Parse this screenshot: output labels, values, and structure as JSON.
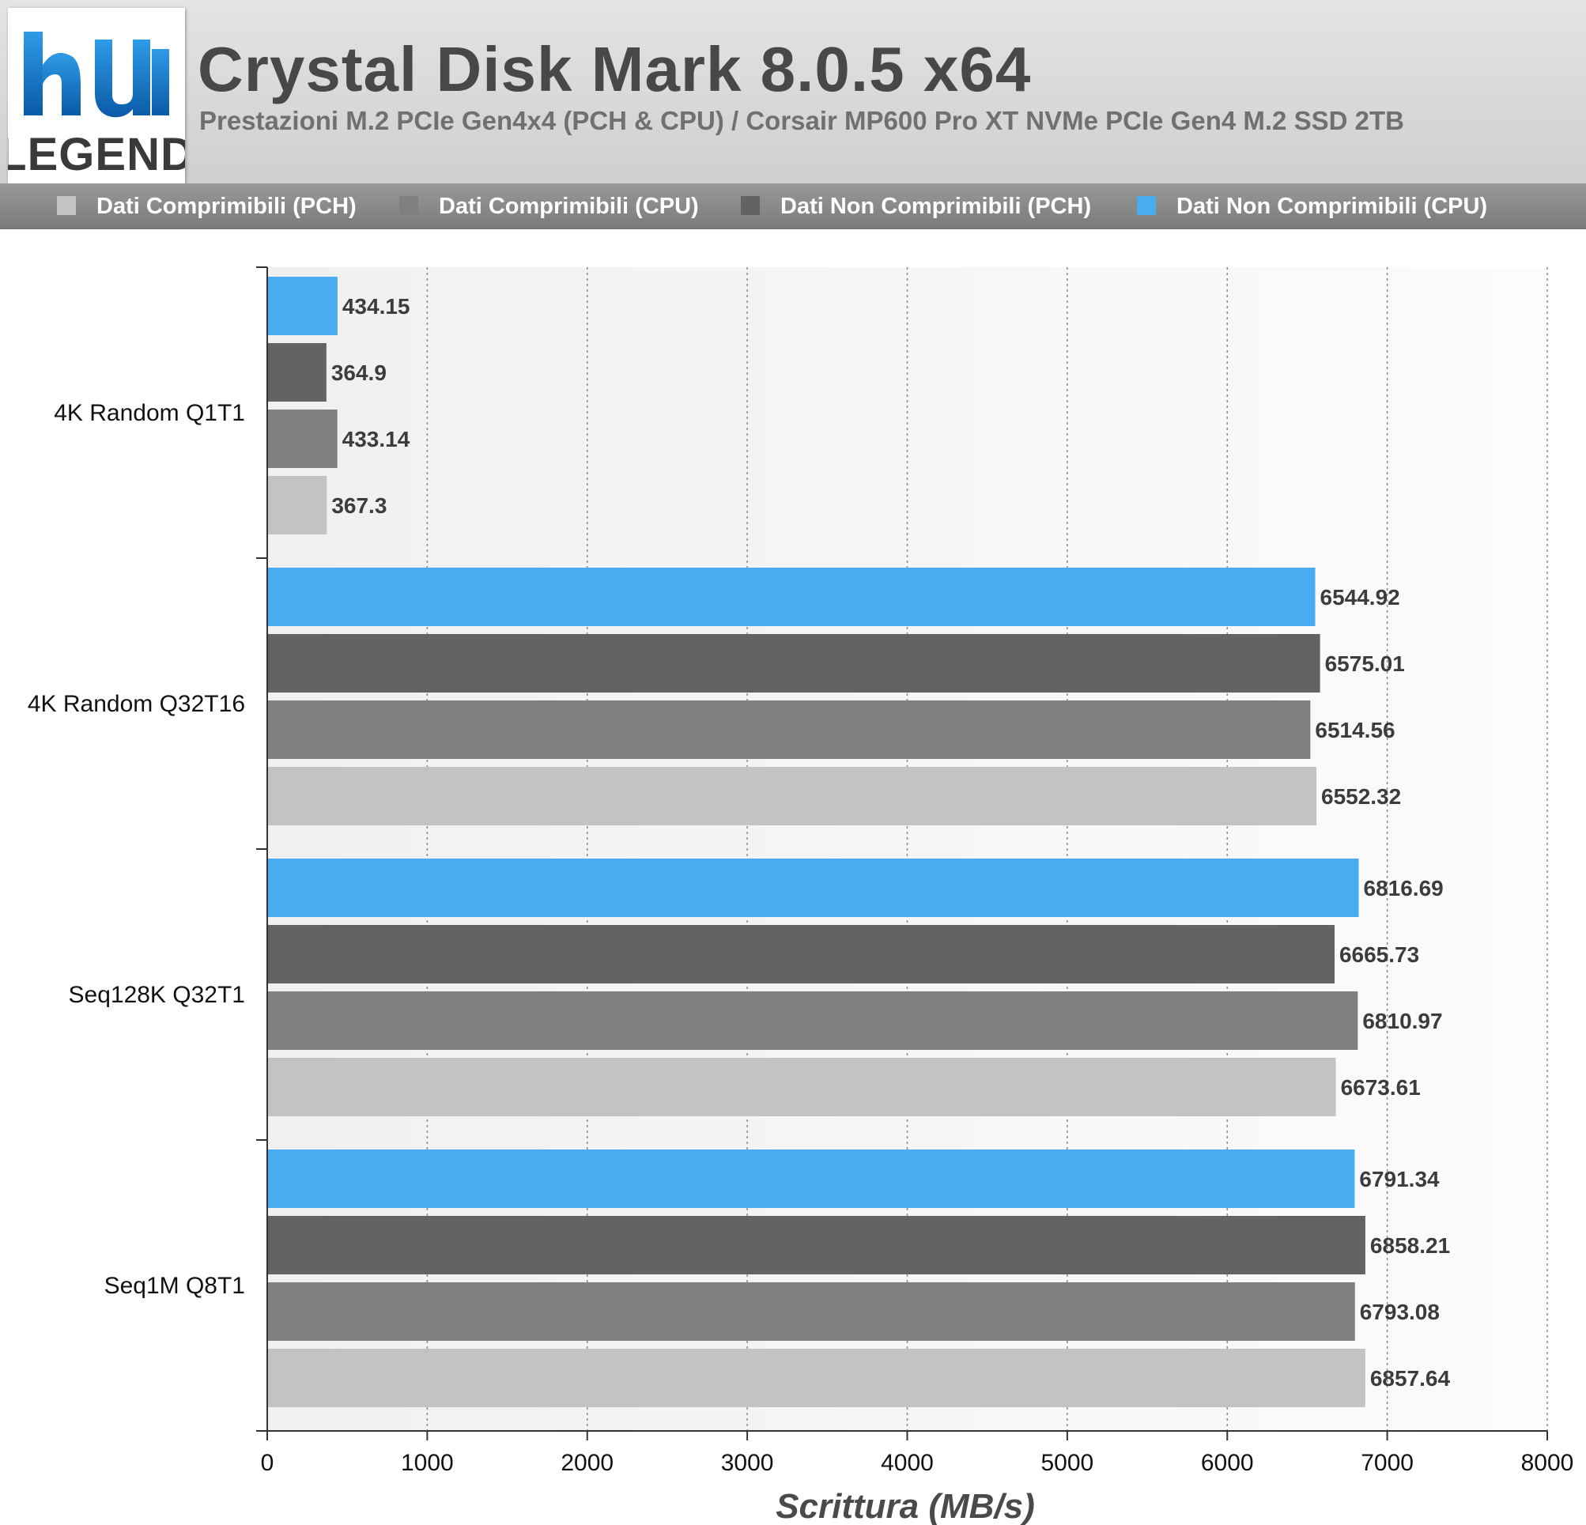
{
  "header": {
    "title": "Crystal Disk Mark 8.0.5 x64",
    "subtitle": "Prestazioni M.2 PCIe Gen4x4 (PCH & CPU) / Corsair MP600 Pro XT NVMe PCIe Gen4 M.2 SSD 2TB",
    "logo_text": "LEGEND"
  },
  "chart_data": {
    "type": "bar",
    "orientation": "horizontal",
    "title": "Crystal Disk Mark 8.0.5 x64",
    "subtitle": "Prestazioni M.2 PCIe Gen4x4 (PCH & CPU) / Corsair MP600 Pro XT NVMe PCIe Gen4 M.2 SSD 2TB",
    "xlabel": "Scrittura (MB/s)",
    "ylabel": "",
    "xlim": [
      0,
      8000
    ],
    "xticks": [
      "0",
      "1000",
      "2000",
      "3000",
      "4000",
      "5000",
      "6000",
      "7000",
      "8000"
    ],
    "grid": "vertical dotted",
    "legend_position": "top",
    "categories": [
      "4K Random Q1T1",
      "4K Random Q32T16",
      "Seq128K Q32T1",
      "Seq1M Q8T1"
    ],
    "series": [
      {
        "name": "Dati Comprimibili (PCH)",
        "color": "#c3c3c3",
        "values": [
          367.3,
          6552.32,
          6673.61,
          6857.64
        ]
      },
      {
        "name": "Dati Comprimibili (CPU)",
        "color": "#808080",
        "values": [
          433.14,
          6514.56,
          6810.97,
          6793.08
        ]
      },
      {
        "name": "Dati Non Comprimibili (PCH)",
        "color": "#636363",
        "values": [
          364.9,
          6575.01,
          6665.73,
          6858.21
        ]
      },
      {
        "name": "Dati Non Comprimibili (CPU)",
        "color": "#47acf0",
        "values": [
          434.15,
          6544.92,
          6816.69,
          6791.34
        ]
      }
    ],
    "value_labels": [
      [
        "367.3",
        "6552.32",
        "6673.61",
        "6857.64"
      ],
      [
        "433.14",
        "6514.56",
        "6810.97",
        "6793.08"
      ],
      [
        "364.9",
        "6575.01",
        "6665.73",
        "6858.21"
      ],
      [
        "434.15",
        "6544.92",
        "6816.69",
        "6791.34"
      ]
    ]
  }
}
